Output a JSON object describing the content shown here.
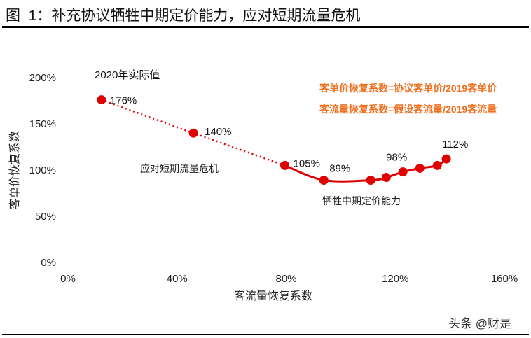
{
  "title": "图  1：补充协议牺牲中期定价能力，应对短期流量危机",
  "watermark": "头条 @财是",
  "chart_data": {
    "type": "line",
    "xlabel": "客流量恢复系数",
    "ylabel": "客单价恢复系数",
    "xlim": [
      0,
      160
    ],
    "ylim": [
      0,
      200
    ],
    "x_ticks": [
      "0%",
      "40%",
      "80%",
      "120%",
      "160%"
    ],
    "y_ticks": [
      "0%",
      "50%",
      "100%",
      "150%",
      "200%"
    ],
    "grid": false,
    "color": "#e00000",
    "points": [
      {
        "x": 12.3,
        "y": 176,
        "label": "176%"
      },
      {
        "x": 46,
        "y": 140,
        "label": "140%"
      },
      {
        "x": 79.5,
        "y": 105,
        "label": "105%"
      },
      {
        "x": 93.8,
        "y": 89,
        "label": "89%"
      },
      {
        "x": 111,
        "y": 89,
        "label": ""
      },
      {
        "x": 116.7,
        "y": 92,
        "label": ""
      },
      {
        "x": 122.8,
        "y": 98,
        "label": "98%"
      },
      {
        "x": 129,
        "y": 102,
        "label": ""
      },
      {
        "x": 135.4,
        "y": 105,
        "label": ""
      },
      {
        "x": 138.7,
        "y": 112,
        "label": "112%"
      }
    ],
    "dotted_segment_end_index": 2,
    "annotations": {
      "actual": "2020年实际值",
      "short_term": "应对短期流量危机",
      "mid_term": "牺牲中期定价能力",
      "formula1": "客单价恢复系数=协议客单价/2019客单价",
      "formula2": "客流量恢复系数=假设客流量/2019客流量",
      "formula_color": "#f07020"
    }
  }
}
